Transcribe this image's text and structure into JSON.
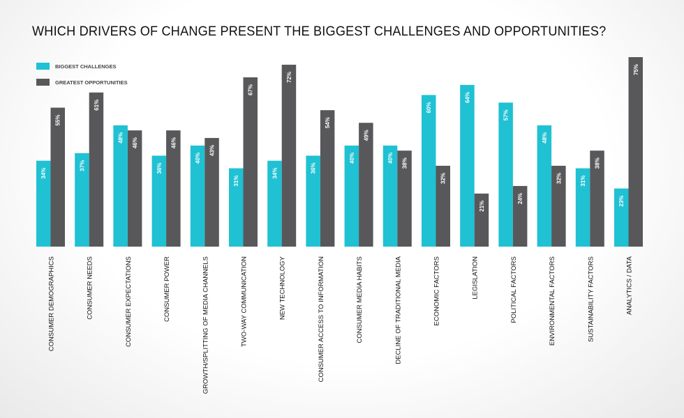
{
  "chart_data": {
    "type": "bar",
    "title": "WHICH DRIVERS OF CHANGE PRESENT THE BIGGEST CHALLENGES AND OPPORTUNITIES?",
    "categories": [
      "CONSUMER DEMOGRAPHICS",
      "CONSUMER NEEDS",
      "CONSUMER EXPECTATIONS",
      "CONSUMER POWER",
      "GROWTH/SPLITTING OF MEDIA CHANNELS",
      "TWO-WAY COMMUNICATION",
      "NEW TECHNOLOGY",
      "CONSUMER ACCESS TO INFORMATION",
      "CONSUMER MEDIA HABITS",
      "DECLINE OF TRADITIONAL MEDIA",
      "ECONOMIC FACTORS",
      "LEGISLATION",
      "POLITICAL FACTORS",
      "ENVIRONMENTAL FACTORS",
      "SUSTAINABILITY FACTORS",
      "ANALYTICS / DATA"
    ],
    "series": [
      {
        "name": "BIGGEST CHALLENGES",
        "color": "#1fc1d3",
        "values": [
          34,
          37,
          48,
          36,
          40,
          31,
          34,
          36,
          40,
          40,
          60,
          64,
          57,
          48,
          31,
          23
        ],
        "labels": [
          "34%",
          "37%",
          "48%",
          "36%",
          "40%",
          "31%",
          "34%",
          "36%",
          "40%",
          "40%",
          "60%",
          "64%",
          "57%",
          "48%",
          "31%",
          "23%"
        ]
      },
      {
        "name": "GREATEST OPPORTUNITIES",
        "color": "#58585b",
        "values": [
          55,
          61,
          46,
          46,
          43,
          67,
          72,
          54,
          49,
          38,
          32,
          21,
          24,
          32,
          38,
          75
        ],
        "labels": [
          "55%",
          "61%",
          "46%",
          "46%",
          "43%",
          "67%",
          "72%",
          "54%",
          "49%",
          "38%",
          "32%",
          "21%",
          "24%",
          "32%",
          "38%",
          "75%"
        ]
      }
    ],
    "ylim": [
      0,
      75
    ],
    "grid": false,
    "legend": "top-left"
  }
}
